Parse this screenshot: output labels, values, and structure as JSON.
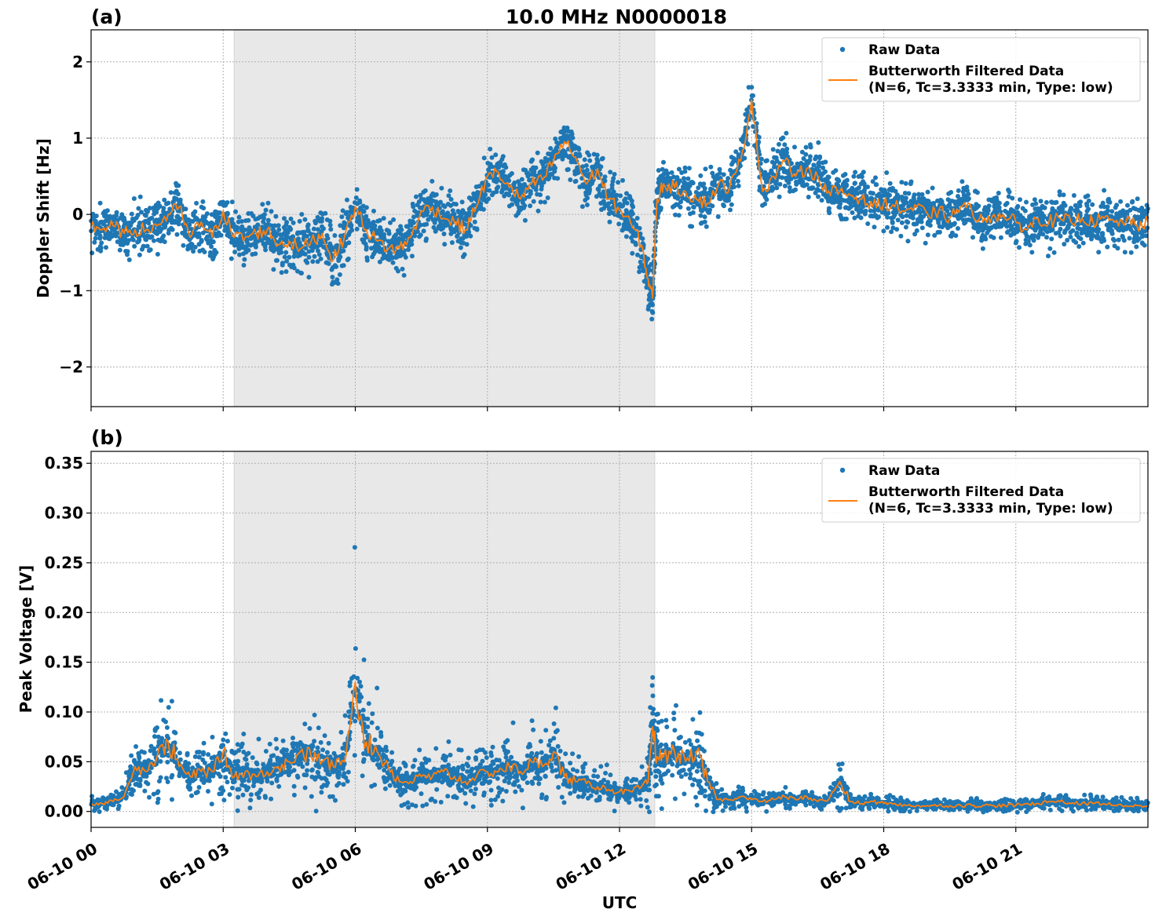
{
  "figure": {
    "title": "10.0 MHz N0000018",
    "xlabel": "UTC"
  },
  "chart_data": [
    {
      "type": "scatter",
      "panel_label": "(a)",
      "title": "10.0 MHz N0000018",
      "xlabel": "UTC",
      "ylabel": "Doppler Shift [Hz]",
      "xlim": [
        0,
        24
      ],
      "ylim": [
        -2.52,
        2.42
      ],
      "x_tick_values": [
        0,
        3,
        6,
        9,
        12,
        15,
        18,
        21
      ],
      "x_tick_labels": [
        "06-10 00",
        "06-10 03",
        "06-10 06",
        "06-10 09",
        "06-10 12",
        "06-10 15",
        "06-10 18",
        "06-10 21"
      ],
      "y_ticks": [
        -2,
        -1,
        0,
        1,
        2
      ],
      "y_tick_labels": [
        "−2",
        "−1",
        "0",
        "1",
        "2"
      ],
      "grid": true,
      "legend_position": "top-right",
      "shaded_region": [
        3.25,
        12.8
      ],
      "series": [
        {
          "name": "Raw Data",
          "kind": "scatter",
          "color": "#1f77b4",
          "x": [
            0,
            0.25,
            0.5,
            0.75,
            1,
            1.25,
            1.5,
            1.75,
            2,
            2.25,
            2.5,
            2.75,
            3,
            3.25,
            3.5,
            3.75,
            4,
            4.25,
            4.5,
            4.75,
            5,
            5.25,
            5.5,
            5.75,
            6,
            6.25,
            6.5,
            6.75,
            7,
            7.25,
            7.5,
            7.75,
            8,
            8.25,
            8.5,
            8.75,
            9,
            9.25,
            9.5,
            9.75,
            10,
            10.25,
            10.5,
            10.75,
            11,
            11.25,
            11.5,
            11.75,
            12,
            12.25,
            12.5,
            12.65,
            12.75,
            12.85,
            13,
            13.25,
            13.5,
            13.75,
            14,
            14.25,
            14.5,
            14.75,
            15,
            15.25,
            15.5,
            15.75,
            16,
            16.25,
            16.5,
            16.75,
            17,
            17.25,
            17.5,
            17.75,
            18,
            18.25,
            18.5,
            18.75,
            19,
            19.25,
            19.5,
            19.75,
            20,
            20.25,
            20.5,
            20.75,
            21,
            21.25,
            21.5,
            21.75,
            22,
            22.25,
            22.5,
            22.75,
            23,
            23.25,
            23.5,
            23.75,
            24
          ],
          "y": [
            -0.15,
            -0.2,
            -0.15,
            -0.25,
            -0.2,
            -0.2,
            -0.15,
            0,
            0.1,
            -0.3,
            -0.1,
            -0.3,
            0.05,
            -0.3,
            -0.3,
            -0.25,
            -0.2,
            -0.4,
            -0.35,
            -0.45,
            -0.35,
            -0.25,
            -0.6,
            -0.3,
            0.1,
            -0.2,
            -0.35,
            -0.45,
            -0.45,
            -0.3,
            0.05,
            0.1,
            -0.05,
            -0.1,
            -0.2,
            0.1,
            0.5,
            0.55,
            0.35,
            0.2,
            0.4,
            0.45,
            0.7,
            0.95,
            0.75,
            0.4,
            0.6,
            0.2,
            0.05,
            -0.1,
            -0.4,
            -0.85,
            -1.1,
            0.2,
            0.4,
            0.35,
            0.3,
            0.2,
            0.15,
            0.4,
            0.35,
            0.7,
            1.5,
            0.3,
            0.5,
            0.7,
            0.5,
            0.6,
            0.5,
            0.3,
            0.3,
            0.25,
            0.2,
            0.1,
            0.15,
            0.1,
            0.05,
            0.1,
            0.0,
            0.05,
            -0.05,
            0.1,
            0.05,
            -0.1,
            0.0,
            -0.05,
            -0.1,
            -0.2,
            -0.05,
            -0.1,
            -0.05,
            -0.1,
            -0.05,
            -0.1,
            -0.05,
            -0.1,
            -0.1,
            -0.15,
            -0.1
          ]
        },
        {
          "name": "Butterworth Filtered Data\n(N=6, Tc=3.3333 min, Type: low)",
          "kind": "line",
          "color": "#ff7f0e",
          "x": [
            0,
            0.25,
            0.5,
            0.75,
            1,
            1.25,
            1.5,
            1.75,
            2,
            2.25,
            2.5,
            2.75,
            3,
            3.25,
            3.5,
            3.75,
            4,
            4.25,
            4.5,
            4.75,
            5,
            5.25,
            5.5,
            5.75,
            6,
            6.25,
            6.5,
            6.75,
            7,
            7.25,
            7.5,
            7.75,
            8,
            8.25,
            8.5,
            8.75,
            9,
            9.25,
            9.5,
            9.75,
            10,
            10.25,
            10.5,
            10.75,
            11,
            11.25,
            11.5,
            11.75,
            12,
            12.25,
            12.5,
            12.65,
            12.75,
            12.85,
            13,
            13.25,
            13.5,
            13.75,
            14,
            14.25,
            14.5,
            14.75,
            15,
            15.25,
            15.5,
            15.75,
            16,
            16.25,
            16.5,
            16.75,
            17,
            17.25,
            17.5,
            17.75,
            18,
            18.25,
            18.5,
            18.75,
            19,
            19.25,
            19.5,
            19.75,
            20,
            20.25,
            20.5,
            20.75,
            21,
            21.25,
            21.5,
            21.75,
            22,
            22.25,
            22.5,
            22.75,
            23,
            23.25,
            23.5,
            23.75,
            24
          ],
          "y": [
            -0.15,
            -0.2,
            -0.15,
            -0.25,
            -0.2,
            -0.2,
            -0.15,
            0,
            0.1,
            -0.3,
            -0.1,
            -0.3,
            0.05,
            -0.3,
            -0.3,
            -0.25,
            -0.2,
            -0.4,
            -0.35,
            -0.45,
            -0.35,
            -0.25,
            -0.6,
            -0.3,
            0.1,
            -0.2,
            -0.35,
            -0.45,
            -0.45,
            -0.3,
            0.05,
            0.1,
            -0.05,
            -0.1,
            -0.2,
            0.1,
            0.5,
            0.55,
            0.35,
            0.2,
            0.4,
            0.45,
            0.7,
            0.95,
            0.75,
            0.4,
            0.6,
            0.2,
            0.05,
            -0.1,
            -0.4,
            -0.85,
            -1.1,
            0.2,
            0.4,
            0.35,
            0.3,
            0.2,
            0.15,
            0.4,
            0.35,
            0.7,
            1.5,
            0.3,
            0.5,
            0.7,
            0.5,
            0.6,
            0.5,
            0.3,
            0.3,
            0.25,
            0.2,
            0.1,
            0.15,
            0.1,
            0.05,
            0.1,
            0.0,
            0.05,
            -0.05,
            0.1,
            0.05,
            -0.1,
            0.0,
            -0.05,
            -0.1,
            -0.2,
            -0.05,
            -0.1,
            -0.05,
            -0.1,
            -0.05,
            -0.1,
            -0.05,
            -0.1,
            -0.1,
            -0.15,
            -0.1
          ]
        }
      ]
    },
    {
      "type": "scatter",
      "panel_label": "(b)",
      "xlabel": "UTC",
      "ylabel": "Peak Voltage [V]",
      "xlim": [
        0,
        24
      ],
      "ylim": [
        -0.016,
        0.362
      ],
      "x_tick_values": [
        0,
        3,
        6,
        9,
        12,
        15,
        18,
        21
      ],
      "x_tick_labels": [
        "06-10 00",
        "06-10 03",
        "06-10 06",
        "06-10 09",
        "06-10 12",
        "06-10 15",
        "06-10 18",
        "06-10 21"
      ],
      "y_ticks": [
        0,
        0.05,
        0.1,
        0.15,
        0.2,
        0.25,
        0.3,
        0.35
      ],
      "y_tick_labels": [
        "0.00",
        "0.05",
        "0.10",
        "0.15",
        "0.20",
        "0.25",
        "0.30",
        "0.35"
      ],
      "grid": true,
      "legend_position": "top-right",
      "shaded_region": [
        3.25,
        12.8
      ],
      "series": [
        {
          "name": "Raw Data",
          "kind": "scatter",
          "color": "#1f77b4",
          "x": [
            0,
            0.25,
            0.5,
            0.75,
            1,
            1.25,
            1.5,
            1.75,
            2,
            2.25,
            2.5,
            2.75,
            3,
            3.25,
            3.5,
            3.75,
            4,
            4.25,
            4.5,
            4.75,
            5,
            5.25,
            5.5,
            5.75,
            6,
            6.25,
            6.5,
            6.75,
            7,
            7.25,
            7.5,
            7.75,
            8,
            8.25,
            8.5,
            8.75,
            9,
            9.25,
            9.5,
            9.75,
            10,
            10.25,
            10.5,
            10.75,
            11,
            11.25,
            11.5,
            11.75,
            12,
            12.25,
            12.5,
            12.65,
            12.75,
            12.85,
            13,
            13.25,
            13.5,
            13.75,
            14,
            14.25,
            14.5,
            14.75,
            15,
            15.25,
            15.5,
            15.75,
            16,
            16.25,
            16.5,
            16.75,
            17,
            17.25,
            17.5,
            17.75,
            18,
            18.25,
            18.5,
            18.75,
            19,
            19.25,
            19.5,
            19.75,
            20,
            20.25,
            20.5,
            20.75,
            21,
            21.25,
            21.5,
            21.75,
            22,
            22.25,
            22.5,
            22.75,
            23,
            23.25,
            23.5,
            23.75,
            24
          ],
          "y": [
            0.008,
            0.008,
            0.01,
            0.015,
            0.045,
            0.04,
            0.055,
            0.07,
            0.045,
            0.035,
            0.04,
            0.04,
            0.06,
            0.035,
            0.04,
            0.035,
            0.04,
            0.045,
            0.05,
            0.06,
            0.055,
            0.05,
            0.045,
            0.05,
            0.13,
            0.07,
            0.06,
            0.045,
            0.03,
            0.03,
            0.035,
            0.035,
            0.04,
            0.035,
            0.03,
            0.035,
            0.04,
            0.04,
            0.045,
            0.04,
            0.05,
            0.045,
            0.06,
            0.035,
            0.03,
            0.028,
            0.025,
            0.022,
            0.02,
            0.02,
            0.025,
            0.03,
            0.085,
            0.055,
            0.055,
            0.06,
            0.05,
            0.06,
            0.03,
            0.012,
            0.012,
            0.015,
            0.012,
            0.01,
            0.012,
            0.015,
            0.012,
            0.015,
            0.01,
            0.012,
            0.03,
            0.01,
            0.008,
            0.01,
            0.008,
            0.008,
            0.006,
            0.006,
            0.006,
            0.006,
            0.006,
            0.006,
            0.006,
            0.006,
            0.006,
            0.006,
            0.006,
            0.008,
            0.008,
            0.01,
            0.01,
            0.008,
            0.008,
            0.008,
            0.008,
            0.006,
            0.006,
            0.006,
            0.006
          ]
        },
        {
          "name": "Butterworth Filtered Data\n(N=6, Tc=3.3333 min, Type: low)",
          "kind": "line",
          "color": "#ff7f0e",
          "x": [
            0,
            0.25,
            0.5,
            0.75,
            1,
            1.25,
            1.5,
            1.75,
            2,
            2.25,
            2.5,
            2.75,
            3,
            3.25,
            3.5,
            3.75,
            4,
            4.25,
            4.5,
            4.75,
            5,
            5.25,
            5.5,
            5.75,
            6,
            6.25,
            6.5,
            6.75,
            7,
            7.25,
            7.5,
            7.75,
            8,
            8.25,
            8.5,
            8.75,
            9,
            9.25,
            9.5,
            9.75,
            10,
            10.25,
            10.5,
            10.75,
            11,
            11.25,
            11.5,
            11.75,
            12,
            12.25,
            12.5,
            12.65,
            12.75,
            12.85,
            13,
            13.25,
            13.5,
            13.75,
            14,
            14.25,
            14.5,
            14.75,
            15,
            15.25,
            15.5,
            15.75,
            16,
            16.25,
            16.5,
            16.75,
            17,
            17.25,
            17.5,
            17.75,
            18,
            18.25,
            18.5,
            18.75,
            19,
            19.25,
            19.5,
            19.75,
            20,
            20.25,
            20.5,
            20.75,
            21,
            21.25,
            21.5,
            21.75,
            22,
            22.25,
            22.5,
            22.75,
            23,
            23.25,
            23.5,
            23.75,
            24
          ],
          "y": [
            0.008,
            0.008,
            0.01,
            0.015,
            0.045,
            0.04,
            0.055,
            0.07,
            0.045,
            0.035,
            0.04,
            0.04,
            0.06,
            0.035,
            0.04,
            0.035,
            0.04,
            0.045,
            0.05,
            0.06,
            0.055,
            0.05,
            0.045,
            0.05,
            0.13,
            0.07,
            0.06,
            0.045,
            0.03,
            0.03,
            0.035,
            0.035,
            0.04,
            0.035,
            0.03,
            0.035,
            0.04,
            0.04,
            0.045,
            0.04,
            0.05,
            0.045,
            0.06,
            0.035,
            0.03,
            0.028,
            0.025,
            0.022,
            0.02,
            0.02,
            0.025,
            0.03,
            0.085,
            0.055,
            0.055,
            0.06,
            0.05,
            0.06,
            0.03,
            0.012,
            0.012,
            0.015,
            0.012,
            0.01,
            0.012,
            0.015,
            0.012,
            0.015,
            0.01,
            0.012,
            0.03,
            0.01,
            0.008,
            0.01,
            0.008,
            0.008,
            0.006,
            0.006,
            0.006,
            0.006,
            0.006,
            0.006,
            0.006,
            0.006,
            0.006,
            0.006,
            0.006,
            0.008,
            0.008,
            0.01,
            0.01,
            0.008,
            0.008,
            0.008,
            0.008,
            0.006,
            0.006,
            0.006,
            0.006
          ]
        }
      ]
    }
  ]
}
